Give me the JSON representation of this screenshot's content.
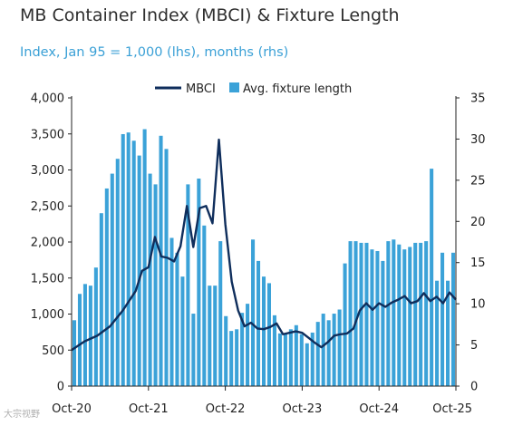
{
  "title": "MB Container Index (MBCI) & Fixture Length",
  "subtitle": "Index, Jan 95 = 1,000 (lhs), months (rhs)",
  "watermark": "大宗视野",
  "colors": {
    "line": "#0f2e5c",
    "bar": "#3ba2d8",
    "axis": "#222222"
  },
  "chart_data": {
    "type": "bar",
    "legend": {
      "placement": "top-center",
      "line_label": "MBCI",
      "bar_label": "Avg. fixture length"
    },
    "x_tick_labels": [
      "Oct-20",
      "Oct-21",
      "Oct-22",
      "Oct-23",
      "Oct-24",
      "Oct-25"
    ],
    "y_left": {
      "min": 0,
      "max": 4000,
      "step": 500,
      "ticks": [
        "0",
        "500",
        "1,000",
        "1,500",
        "2,000",
        "2,500",
        "3,000",
        "3,500",
        "4,000"
      ]
    },
    "y_right": {
      "min": 0,
      "max": 35,
      "step": 5,
      "ticks": [
        "0",
        "5",
        "10",
        "15",
        "20",
        "25",
        "30",
        "35"
      ]
    },
    "grid": false,
    "x_start": "2020-10",
    "x_end": "2025-10",
    "series": [
      {
        "name": "Avg. fixture length",
        "axis": "right",
        "kind": "bar",
        "values": [
          8,
          11.2,
          12.4,
          12.2,
          14.4,
          21,
          24,
          25.8,
          27.6,
          30.6,
          30.8,
          29.8,
          28,
          31.2,
          25.8,
          24.5,
          30.4,
          28.8,
          18,
          16.2,
          13.3,
          24.5,
          8.8,
          25.2,
          19.5,
          12.2,
          12.2,
          17.6,
          8.5,
          6.7,
          6.9,
          8.9,
          10,
          17.8,
          15.2,
          13.3,
          12.5,
          8.6,
          6.4,
          6.3,
          6.9,
          7.4,
          6.3,
          5.2,
          6.5,
          7.8,
          8.8,
          8,
          8.8,
          9.3,
          14.9,
          17.6,
          17.6,
          17.4,
          17.4,
          16.6,
          16.4,
          15.2,
          17.6,
          17.8,
          17.2,
          16.6,
          16.9,
          17.4,
          17.4,
          17.6,
          26.4,
          12.8,
          16.2,
          12.8,
          16.2
        ]
      },
      {
        "name": "MBCI",
        "axis": "left",
        "kind": "line",
        "x": [
          "2020-10",
          "2020-12",
          "2021-02",
          "2021-04",
          "2021-06",
          "2021-08",
          "2021-09",
          "2021-10",
          "2021-11",
          "2021-12",
          "2022-01",
          "2022-02",
          "2022-03",
          "2022-04",
          "2022-05",
          "2022-06",
          "2022-07",
          "2022-08",
          "2022-09",
          "2022-10",
          "2022-11",
          "2022-12",
          "2023-01",
          "2023-02",
          "2023-03",
          "2023-04",
          "2023-05",
          "2023-06",
          "2023-07",
          "2023-08",
          "2023-09",
          "2023-10",
          "2023-11",
          "2023-12",
          "2024-01",
          "2024-02",
          "2024-03",
          "2024-04",
          "2024-05",
          "2024-06",
          "2024-07",
          "2024-08",
          "2024-09",
          "2024-10",
          "2024-11",
          "2024-12",
          "2025-01",
          "2025-02",
          "2025-03",
          "2025-04",
          "2025-05",
          "2025-06",
          "2025-07",
          "2025-08",
          "2025-09",
          "2025-10"
        ],
        "values": [
          500,
          620,
          700,
          830,
          1050,
          1320,
          1600,
          1650,
          2070,
          1800,
          1780,
          1730,
          1940,
          2500,
          1930,
          2470,
          2500,
          2260,
          3420,
          2250,
          1450,
          1050,
          830,
          880,
          800,
          790,
          820,
          870,
          720,
          740,
          760,
          740,
          670,
          600,
          540,
          610,
          700,
          720,
          730,
          800,
          1050,
          1150,
          1060,
          1150,
          1100,
          1160,
          1200,
          1250,
          1150,
          1180,
          1290,
          1180,
          1240,
          1150,
          1300,
          1200
        ]
      }
    ]
  }
}
